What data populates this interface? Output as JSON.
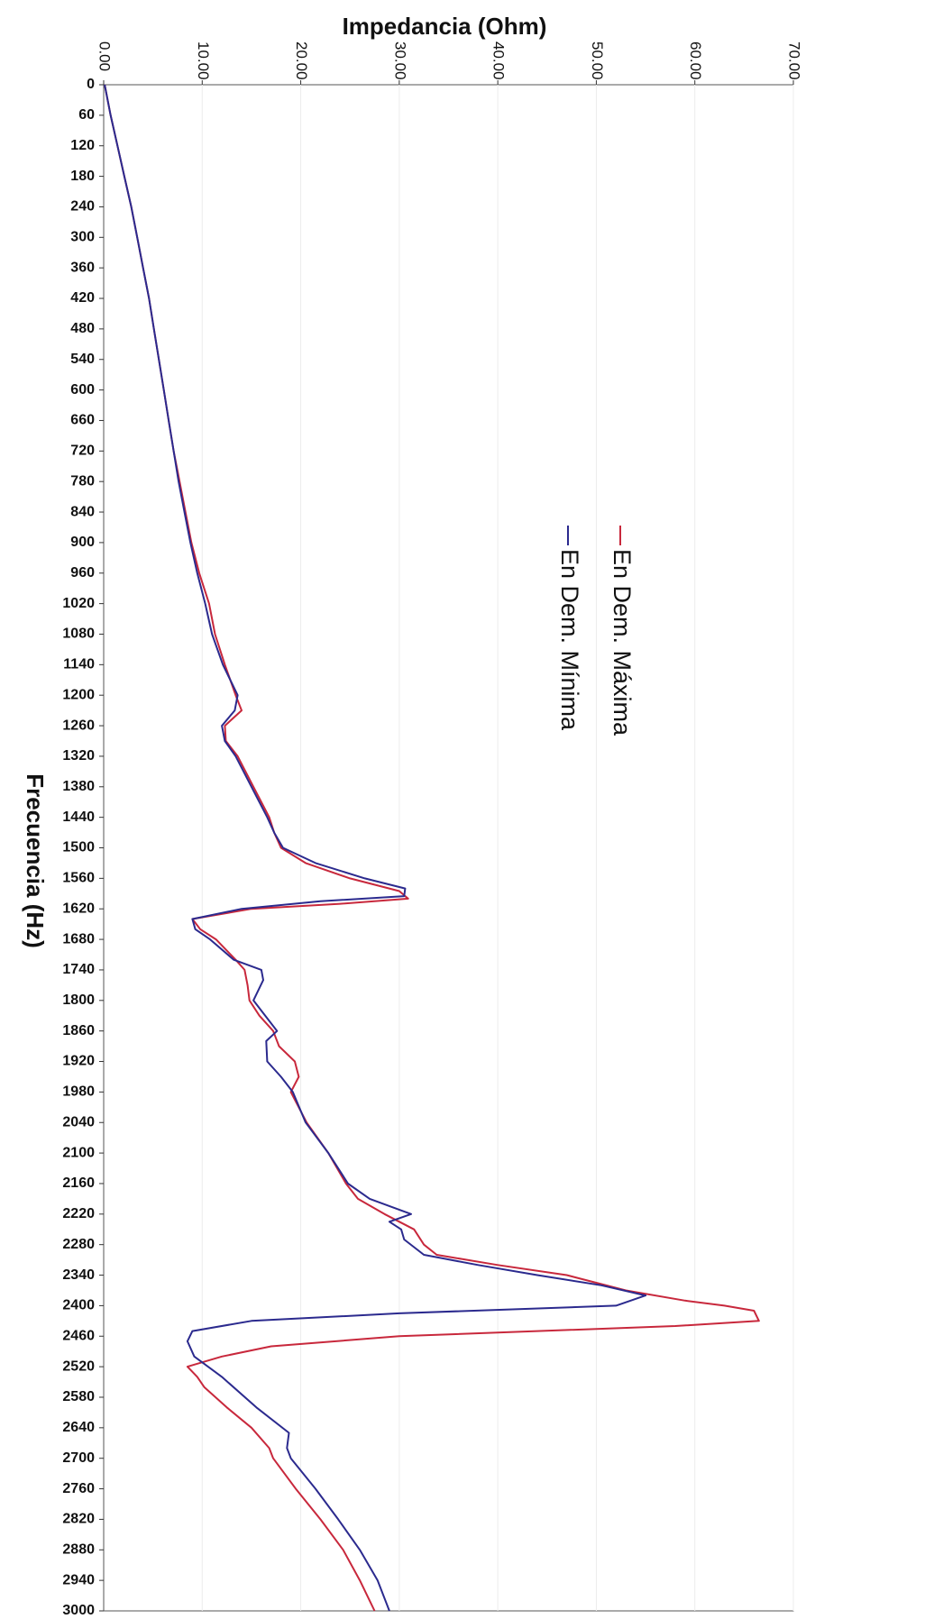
{
  "chart_data": {
    "type": "line",
    "orientation": "rotated-90-clockwise",
    "xlabel": "Frecuencia (Hz)",
    "ylabel": "Impedancia (Ohm)",
    "xlim": [
      0,
      3000
    ],
    "ylim": [
      0,
      70
    ],
    "x_ticks": [
      "0",
      "60",
      "120",
      "180",
      "240",
      "300",
      "360",
      "420",
      "480",
      "540",
      "600",
      "660",
      "720",
      "780",
      "840",
      "900",
      "960",
      "1020",
      "1080",
      "1140",
      "1200",
      "1260",
      "1320",
      "1380",
      "1440",
      "1500",
      "1560",
      "1620",
      "1680",
      "1740",
      "1800",
      "1860",
      "1920",
      "1980",
      "2040",
      "2100",
      "2160",
      "2220",
      "2280",
      "2340",
      "2400",
      "2460",
      "2520",
      "2580",
      "2640",
      "2700",
      "2760",
      "2820",
      "2880",
      "2940",
      "3000"
    ],
    "y_ticks": [
      "0.00",
      "10.00",
      "20.00",
      "30.00",
      "40.00",
      "50.00",
      "60.00",
      "70.00"
    ],
    "legend_position": "upper-middle",
    "series": [
      {
        "name": "En Dem. Máxima",
        "color": "#c8283c",
        "points": [
          [
            0,
            0.1
          ],
          [
            60,
            0.7
          ],
          [
            120,
            1.4
          ],
          [
            180,
            2.1
          ],
          [
            240,
            2.8
          ],
          [
            300,
            3.4
          ],
          [
            360,
            4.0
          ],
          [
            420,
            4.6
          ],
          [
            480,
            5.1
          ],
          [
            540,
            5.6
          ],
          [
            600,
            6.1
          ],
          [
            660,
            6.6
          ],
          [
            720,
            7.1
          ],
          [
            780,
            7.7
          ],
          [
            840,
            8.3
          ],
          [
            900,
            8.9
          ],
          [
            960,
            9.7
          ],
          [
            1020,
            10.7
          ],
          [
            1080,
            11.3
          ],
          [
            1140,
            12.3
          ],
          [
            1200,
            13.4
          ],
          [
            1230,
            14.0
          ],
          [
            1260,
            12.3
          ],
          [
            1290,
            12.4
          ],
          [
            1320,
            13.6
          ],
          [
            1380,
            15.2
          ],
          [
            1440,
            16.8
          ],
          [
            1470,
            17.3
          ],
          [
            1500,
            18.0
          ],
          [
            1530,
            20.5
          ],
          [
            1560,
            25.0
          ],
          [
            1585,
            30.0
          ],
          [
            1600,
            30.9
          ],
          [
            1610,
            24.0
          ],
          [
            1620,
            15.0
          ],
          [
            1640,
            9.0
          ],
          [
            1660,
            9.8
          ],
          [
            1680,
            11.4
          ],
          [
            1720,
            13.4
          ],
          [
            1740,
            14.3
          ],
          [
            1770,
            14.6
          ],
          [
            1800,
            14.8
          ],
          [
            1830,
            15.8
          ],
          [
            1860,
            17.2
          ],
          [
            1890,
            17.8
          ],
          [
            1920,
            19.4
          ],
          [
            1950,
            19.8
          ],
          [
            1980,
            19.0
          ],
          [
            2040,
            20.6
          ],
          [
            2100,
            22.8
          ],
          [
            2160,
            24.6
          ],
          [
            2190,
            25.8
          ],
          [
            2220,
            28.5
          ],
          [
            2250,
            31.5
          ],
          [
            2280,
            32.5
          ],
          [
            2300,
            33.8
          ],
          [
            2320,
            40.0
          ],
          [
            2340,
            47.0
          ],
          [
            2370,
            53.0
          ],
          [
            2390,
            59.0
          ],
          [
            2400,
            63.0
          ],
          [
            2410,
            66.0
          ],
          [
            2430,
            66.5
          ],
          [
            2440,
            58.0
          ],
          [
            2460,
            30.0
          ],
          [
            2480,
            17.0
          ],
          [
            2500,
            12.0
          ],
          [
            2520,
            8.5
          ],
          [
            2540,
            9.5
          ],
          [
            2560,
            10.2
          ],
          [
            2600,
            12.5
          ],
          [
            2640,
            15.0
          ],
          [
            2680,
            16.8
          ],
          [
            2700,
            17.2
          ],
          [
            2760,
            19.5
          ],
          [
            2820,
            22.0
          ],
          [
            2880,
            24.3
          ],
          [
            2940,
            26.0
          ],
          [
            3000,
            27.5
          ]
        ]
      },
      {
        "name": "En Dem. Mínima",
        "color": "#2b2a8e",
        "points": [
          [
            0,
            0.1
          ],
          [
            60,
            0.7
          ],
          [
            120,
            1.4
          ],
          [
            180,
            2.1
          ],
          [
            240,
            2.8
          ],
          [
            300,
            3.4
          ],
          [
            360,
            4.0
          ],
          [
            420,
            4.6
          ],
          [
            480,
            5.1
          ],
          [
            540,
            5.6
          ],
          [
            600,
            6.1
          ],
          [
            660,
            6.6
          ],
          [
            720,
            7.1
          ],
          [
            780,
            7.6
          ],
          [
            840,
            8.2
          ],
          [
            900,
            8.8
          ],
          [
            960,
            9.5
          ],
          [
            1020,
            10.3
          ],
          [
            1080,
            11.0
          ],
          [
            1140,
            12.1
          ],
          [
            1200,
            13.6
          ],
          [
            1230,
            13.3
          ],
          [
            1260,
            12.0
          ],
          [
            1290,
            12.3
          ],
          [
            1320,
            13.4
          ],
          [
            1380,
            15.0
          ],
          [
            1440,
            16.6
          ],
          [
            1470,
            17.3
          ],
          [
            1500,
            18.2
          ],
          [
            1530,
            21.5
          ],
          [
            1560,
            26.5
          ],
          [
            1580,
            30.6
          ],
          [
            1595,
            30.5
          ],
          [
            1605,
            22.0
          ],
          [
            1620,
            14.0
          ],
          [
            1640,
            9.0
          ],
          [
            1660,
            9.3
          ],
          [
            1680,
            10.8
          ],
          [
            1720,
            13.2
          ],
          [
            1740,
            16.0
          ],
          [
            1760,
            16.2
          ],
          [
            1800,
            15.2
          ],
          [
            1830,
            16.4
          ],
          [
            1860,
            17.6
          ],
          [
            1880,
            16.5
          ],
          [
            1920,
            16.6
          ],
          [
            1950,
            18.0
          ],
          [
            1980,
            19.2
          ],
          [
            2040,
            20.5
          ],
          [
            2100,
            22.8
          ],
          [
            2160,
            24.8
          ],
          [
            2190,
            27.0
          ],
          [
            2220,
            31.2
          ],
          [
            2235,
            29.0
          ],
          [
            2250,
            30.2
          ],
          [
            2270,
            30.5
          ],
          [
            2300,
            32.5
          ],
          [
            2320,
            38.0
          ],
          [
            2340,
            44.0
          ],
          [
            2360,
            50.5
          ],
          [
            2380,
            55.0
          ],
          [
            2400,
            52.0
          ],
          [
            2415,
            30.0
          ],
          [
            2430,
            15.0
          ],
          [
            2450,
            9.0
          ],
          [
            2470,
            8.5
          ],
          [
            2500,
            9.2
          ],
          [
            2540,
            12.0
          ],
          [
            2600,
            15.5
          ],
          [
            2650,
            18.8
          ],
          [
            2680,
            18.6
          ],
          [
            2700,
            19.0
          ],
          [
            2760,
            21.5
          ],
          [
            2820,
            23.8
          ],
          [
            2880,
            26.0
          ],
          [
            2940,
            27.8
          ],
          [
            3000,
            29.0
          ]
        ]
      }
    ]
  }
}
